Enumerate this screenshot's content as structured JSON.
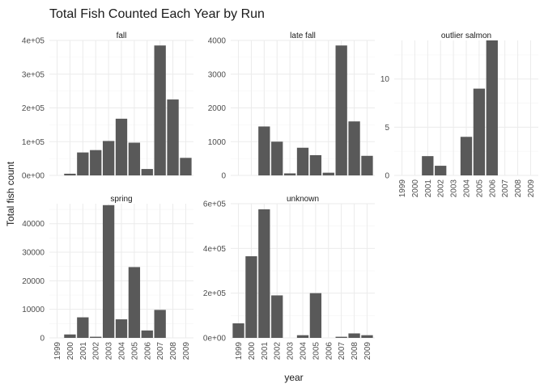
{
  "chart_data": {
    "type": "bar",
    "title": "Total Fish Counted Each Year by Run",
    "xlabel": "year",
    "ylabel": "Total fish count",
    "x_categories": [
      "1999",
      "2000",
      "2001",
      "2002",
      "2003",
      "2004",
      "2005",
      "2006",
      "2007",
      "2008",
      "2009"
    ],
    "grid": true,
    "panels": [
      {
        "name": "fall",
        "ylim": [
          0,
          400000
        ],
        "yticks": [
          0,
          100000,
          200000,
          300000,
          400000
        ],
        "ytick_labels": [
          "0e+00",
          "1e+05",
          "2e+05",
          "3e+05",
          "4e+05"
        ],
        "values": [
          null,
          5000,
          68000,
          75000,
          102000,
          168000,
          97000,
          19000,
          385000,
          225000,
          52000
        ]
      },
      {
        "name": "late fall",
        "ylim": [
          0,
          4000
        ],
        "yticks": [
          0,
          1000,
          2000,
          3000,
          4000
        ],
        "ytick_labels": [
          "0",
          "1000",
          "2000",
          "3000",
          "4000"
        ],
        "values": [
          null,
          null,
          1450,
          1000,
          60,
          820,
          600,
          80,
          3850,
          1600,
          580
        ]
      },
      {
        "name": "outlier salmon",
        "ylim": [
          0,
          14
        ],
        "yticks": [
          0,
          5,
          10
        ],
        "ytick_labels": [
          "0",
          "5",
          "10"
        ],
        "values": [
          null,
          null,
          2,
          1,
          null,
          4,
          9,
          14,
          null,
          null,
          null
        ]
      },
      {
        "name": "spring",
        "ylim": [
          0,
          47000
        ],
        "yticks": [
          0,
          10000,
          20000,
          30000,
          40000
        ],
        "ytick_labels": [
          "0",
          "10000",
          "20000",
          "30000",
          "40000"
        ],
        "values": [
          null,
          1200,
          7200,
          400,
          46500,
          6500,
          24800,
          2600,
          9800,
          null,
          null
        ]
      },
      {
        "name": "unknown",
        "ylim": [
          0,
          600000
        ],
        "yticks": [
          0,
          200000,
          400000,
          600000
        ],
        "ytick_labels": [
          "0e+00",
          "2e+05",
          "4e+05",
          "6e+05"
        ],
        "values": [
          65000,
          365000,
          575000,
          190000,
          null,
          12000,
          200000,
          null,
          5000,
          20000,
          12000
        ]
      }
    ]
  }
}
